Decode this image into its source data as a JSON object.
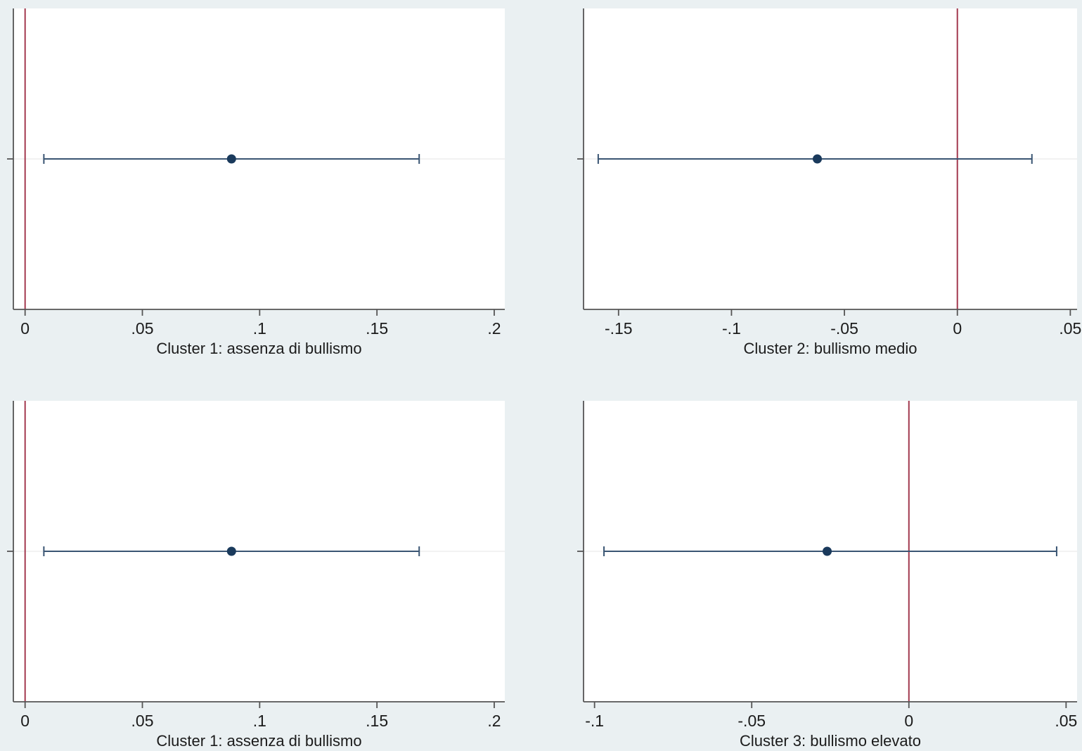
{
  "colors": {
    "background": "#eaf0f2",
    "plot_area": "#ffffff",
    "axis": "#555555",
    "gridline": "#eaeaea",
    "ci_line": "#3a5573",
    "point": "#1a3a5c",
    "reference_line": "#a2384e"
  },
  "chart_data": [
    {
      "type": "scatter",
      "xlabel": "Cluster 1: assenza di bullismo",
      "xlim": [
        -0.005,
        0.2045
      ],
      "xticks": [
        0,
        0.05,
        0.1,
        0.15,
        0.2
      ],
      "xtick_labels": [
        "0",
        ".05",
        ".1",
        ".15",
        ".2"
      ],
      "reference_line_x": 0,
      "estimate": 0.088,
      "ci": [
        0.008,
        0.168
      ],
      "grid": true,
      "legend": "none"
    },
    {
      "type": "scatter",
      "xlabel": "Cluster 2: bullismo medio",
      "xlim": [
        -0.1655,
        0.053
      ],
      "xticks": [
        -0.15,
        -0.1,
        -0.05,
        0,
        0.05
      ],
      "xtick_labels": [
        "-.15",
        "-.1",
        "-.05",
        "0",
        ".05"
      ],
      "reference_line_x": 0,
      "estimate": -0.062,
      "ci": [
        -0.159,
        0.033
      ],
      "grid": true,
      "legend": "none"
    },
    {
      "type": "scatter",
      "xlabel": "Cluster 1: assenza di bullismo",
      "xlim": [
        -0.005,
        0.2045
      ],
      "xticks": [
        0,
        0.05,
        0.1,
        0.15,
        0.2
      ],
      "xtick_labels": [
        "0",
        ".05",
        ".1",
        ".15",
        ".2"
      ],
      "reference_line_x": 0,
      "estimate": 0.088,
      "ci": [
        0.008,
        0.168
      ],
      "grid": true,
      "legend": "none"
    },
    {
      "type": "scatter",
      "xlabel": "Cluster 3: bullismo elevato",
      "xlim": [
        -0.1035,
        0.0535
      ],
      "xticks": [
        -0.1,
        -0.05,
        0,
        0.05
      ],
      "xtick_labels": [
        "-.1",
        "-.05",
        "0",
        ".05"
      ],
      "reference_line_x": 0,
      "estimate": -0.026,
      "ci": [
        -0.097,
        0.047
      ],
      "grid": true,
      "legend": "none"
    }
  ]
}
